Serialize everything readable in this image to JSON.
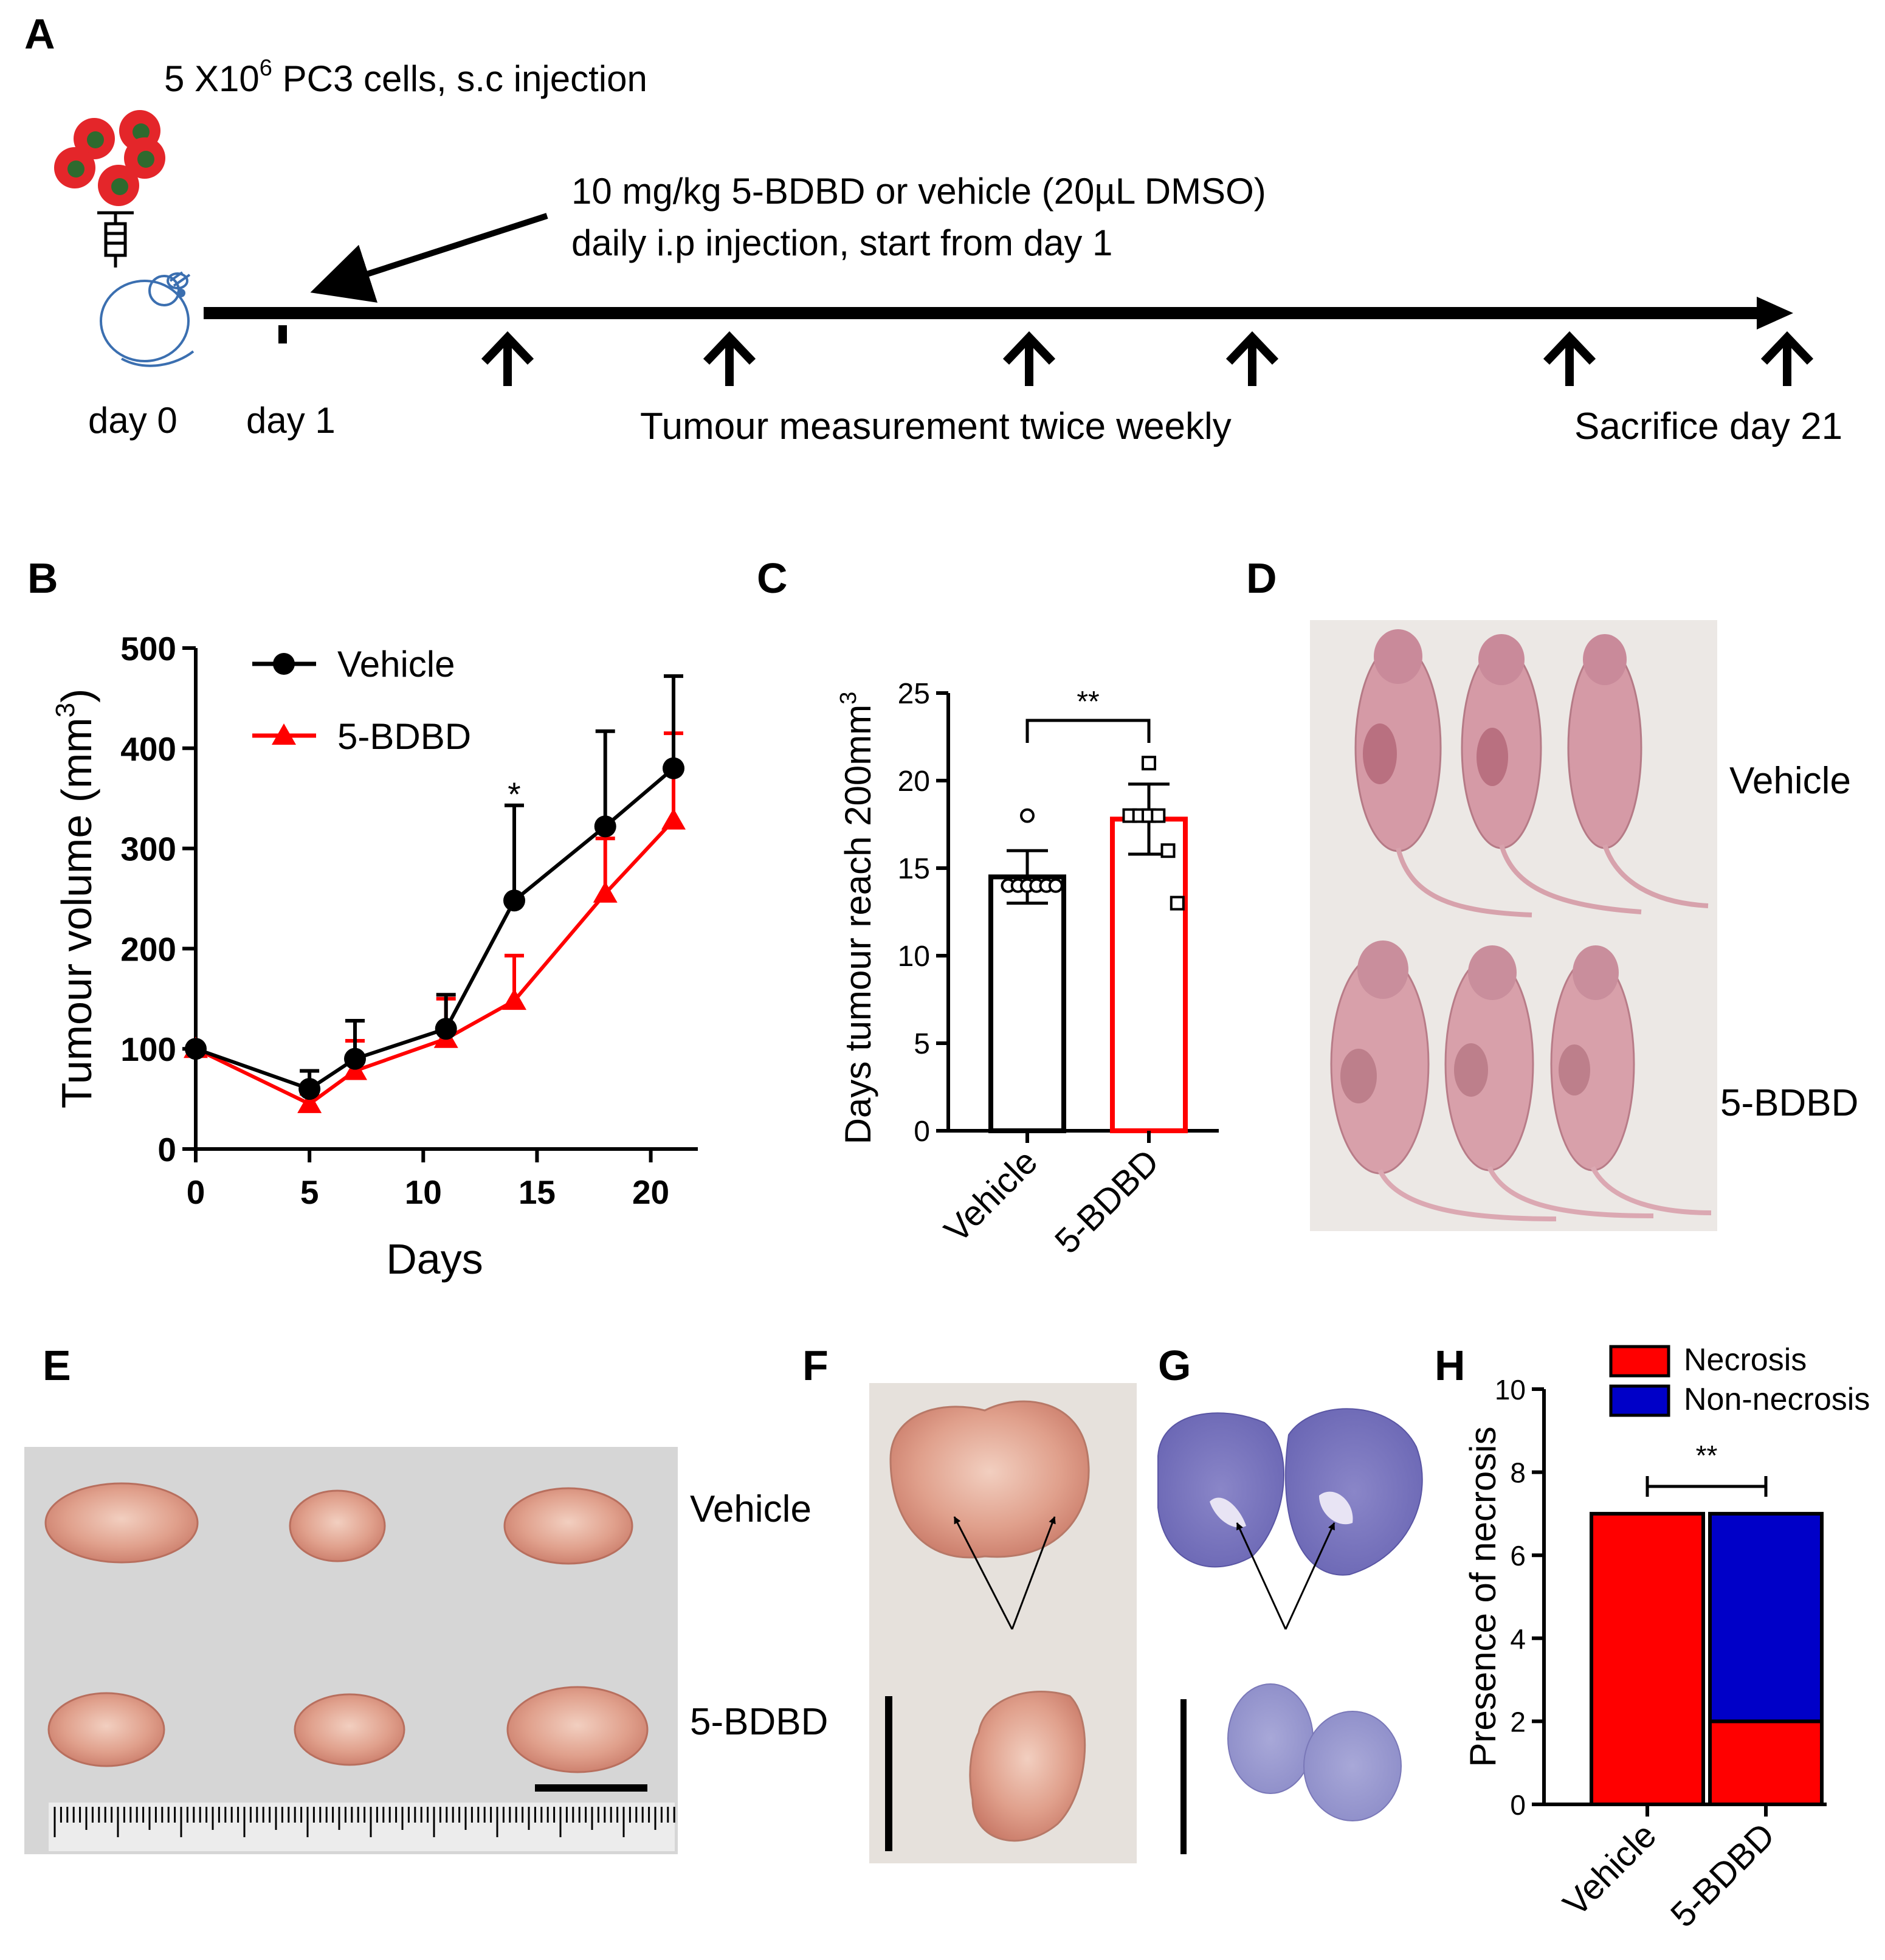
{
  "panel_letters": {
    "A": "A",
    "B": "B",
    "C": "C",
    "D": "D",
    "E": "E",
    "F": "F",
    "G": "G",
    "H": "H"
  },
  "colors": {
    "vehicle": "#000000",
    "bdbd": "#ff0000",
    "necrosis": "#ff0000",
    "non_necrosis": "#0000c8",
    "cell_red": "#e4262a",
    "cell_green": "#2e6a2e",
    "mouse_outline": "#3b6fb0"
  },
  "panel_a": {
    "cells_label_prefix": "5 X10",
    "cells_label_sup": "6",
    "cells_label_suffix": " PC3 cells, s.c injection",
    "dose_line1": "10 mg/kg 5-BDBD or vehicle (20µL DMSO)",
    "dose_line2": "daily i.p injection, start from day 1",
    "day0": "day 0",
    "day1": "day 1",
    "measurement": "Tumour measurement twice weekly",
    "sacrifice": "Sacrifice day 21",
    "measurement_days": [
      5,
      7,
      11,
      14,
      18,
      21
    ]
  },
  "chart_data": [
    {
      "panel": "B",
      "type": "line",
      "x": [
        0,
        5,
        7,
        11,
        14,
        18,
        21
      ],
      "series": [
        {
          "name": "Vehicle",
          "values": [
            100,
            60,
            90,
            120,
            248,
            322,
            380
          ],
          "error": [
            0,
            18,
            38,
            34,
            95,
            95,
            92
          ],
          "marker": "circle"
        },
        {
          "name": "5-BDBD",
          "values": [
            100,
            45,
            78,
            110,
            148,
            255,
            328
          ],
          "error": [
            0,
            10,
            30,
            40,
            45,
            55,
            87
          ],
          "marker": "triangle"
        }
      ],
      "xlabel": "Days",
      "ylabel": "Tumour volume (mm",
      "ylabel_sup": "3",
      "ylabel_close": ")",
      "xlim": [
        0,
        21
      ],
      "ylim": [
        0,
        500
      ],
      "xticks": [
        0,
        5,
        10,
        15,
        20
      ],
      "yticks": [
        0,
        100,
        200,
        300,
        400,
        500
      ],
      "annotations": [
        {
          "x": 14,
          "text": "*"
        }
      ],
      "legend": "top-left"
    },
    {
      "panel": "C",
      "type": "bar",
      "categories": [
        "Vehicle",
        "5-BDBD"
      ],
      "values": [
        14.5,
        17.8
      ],
      "error": [
        1.5,
        2.0
      ],
      "points": [
        [
          18,
          14,
          14,
          14,
          14,
          14,
          14
        ],
        [
          21,
          18,
          18,
          18,
          18,
          16,
          13
        ]
      ],
      "ylabel": "Days tumour reach 200mm",
      "ylabel_sup": "3",
      "ylim": [
        0,
        25
      ],
      "yticks": [
        0,
        5,
        10,
        15,
        20,
        25
      ],
      "significance": "**"
    },
    {
      "panel": "H",
      "type": "bar",
      "stacked": true,
      "categories": [
        "Vehicle",
        "5-BDBD"
      ],
      "series": [
        {
          "name": "Necrosis",
          "values": [
            7,
            2
          ]
        },
        {
          "name": "Non-necrosis",
          "values": [
            0,
            5
          ]
        }
      ],
      "ylabel": "Presence of necrosis",
      "ylim": [
        0,
        10
      ],
      "yticks": [
        0,
        2,
        4,
        6,
        8,
        10
      ],
      "significance": "**",
      "legend": "top"
    }
  ],
  "photos": {
    "d_vehicle": "Vehicle",
    "d_bdbd": "5-BDBD",
    "e_vehicle": "Vehicle",
    "e_bdbd": "5-BDBD"
  }
}
